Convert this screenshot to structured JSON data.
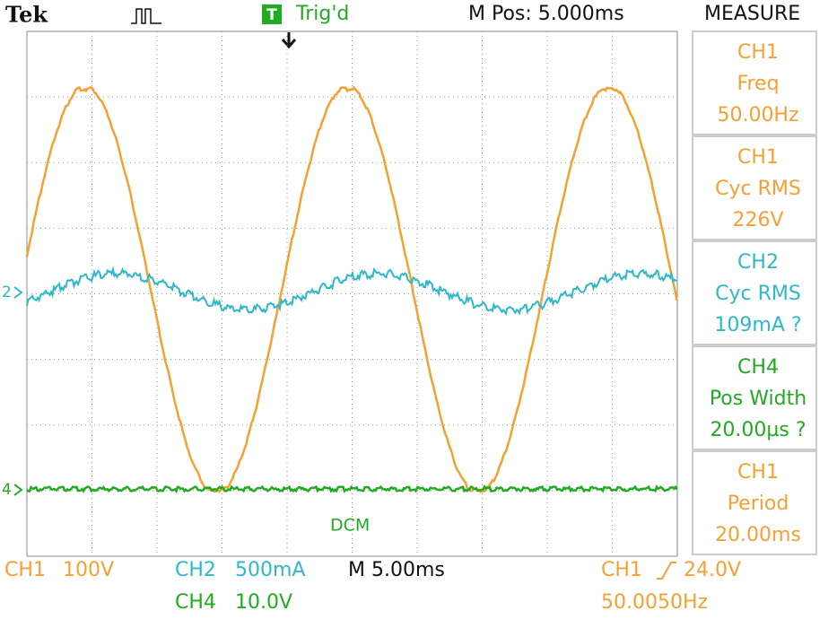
{
  "header": {
    "brand": "Tek",
    "trigger_icon": "T",
    "trigger_status": "Trig'd",
    "position": "M Pos: 5.000ms"
  },
  "measure": {
    "title": "MEASURE",
    "items": [
      {
        "lines": [
          "CH1",
          "Freq",
          "50.00Hz"
        ],
        "color": "#f5a033"
      },
      {
        "lines": [
          "CH1",
          "Cyc RMS",
          "226V"
        ],
        "color": "#f5a033"
      },
      {
        "lines": [
          "CH2",
          "Cyc RMS",
          "109mA ?"
        ],
        "color": "#2fb8c8"
      },
      {
        "lines": [
          "CH4",
          "Pos Width",
          "20.00µs ?"
        ],
        "color": "#22aa22"
      },
      {
        "lines": [
          "CH1",
          "Period",
          "20.00ms"
        ],
        "color": "#f5a033"
      }
    ]
  },
  "markers": [
    "2",
    "4"
  ],
  "annotation": "DCM",
  "footer": {
    "ch1_label": "CH1",
    "ch1_scale": "100V",
    "ch2_label": "CH2",
    "ch2_scale": "500mA",
    "timebase": "M 5.00ms",
    "trigger_source": "CH1",
    "trigger_level": "24.0V",
    "ch4_label": "CH4",
    "ch4_scale": "10.0V",
    "trigger_freq": "50.0050Hz"
  }
}
